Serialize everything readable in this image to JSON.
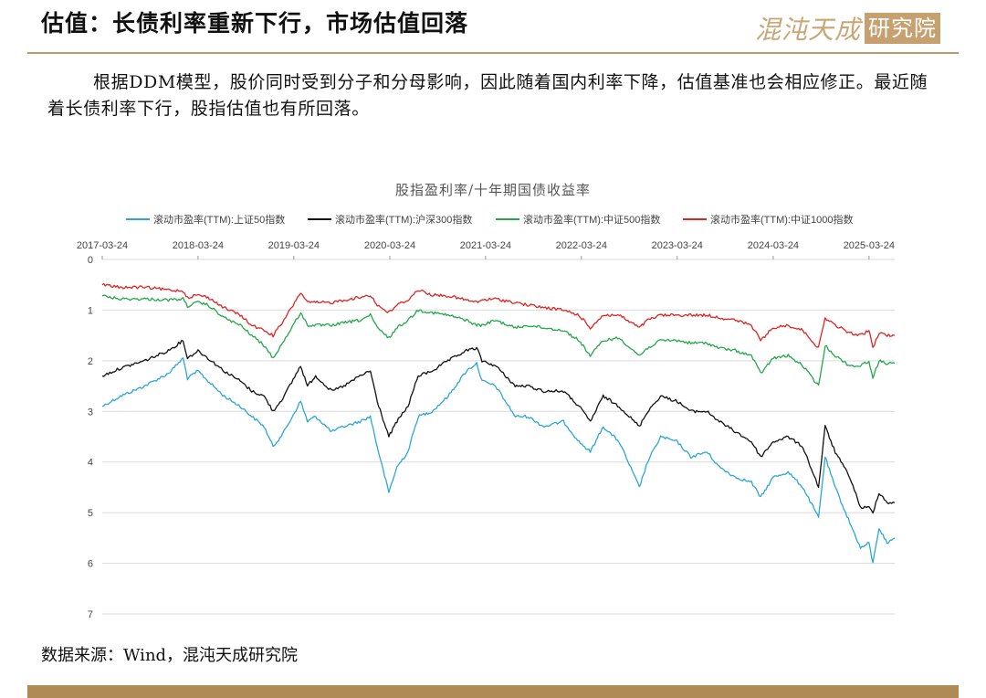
{
  "header": {
    "title": "估值：长债利率重新下行，市场估值回落",
    "logo_text": "混沌天成",
    "logo_box_text": "研究院"
  },
  "intro_text": "根据DDM模型，股价同时受到分子和分母影响，因此随着国内利率下降，估值基准也会相应修正。最近随着长债利率下行，股指估值也有所回落。",
  "source_text": "数据来源：Wind，混沌天成研究院",
  "colors": {
    "accent": "#b89a6c",
    "footer": "#b08a55",
    "sz50": "#2aa7d8",
    "hs300": "#111111",
    "zz500": "#22a84a",
    "zz1000": "#e02222"
  },
  "chart_data": {
    "type": "line",
    "title": "股指盈利率/十年期国债收益率",
    "x_ticks": [
      "2017-03-24",
      "2018-03-24",
      "2019-03-24",
      "2020-03-24",
      "2021-03-24",
      "2022-03-24",
      "2023-03-24",
      "2024-03-24",
      "2025-03-24"
    ],
    "xlim": [
      "2017-03-24",
      "2025-06-30"
    ],
    "y_ticks": [
      "0",
      "1",
      "2",
      "3",
      "4",
      "5",
      "6",
      "7"
    ],
    "ylim": [
      0,
      7
    ],
    "y_inverted": true,
    "x_axis_position": "top",
    "legend_position": "top",
    "grid": "horizontal",
    "series": [
      {
        "name": "滚动市盈率(TTM):上证50指数",
        "color": "#2aa7d8",
        "points": [
          [
            "2017-03-24",
            2.9
          ],
          [
            "2017-06-01",
            2.7
          ],
          [
            "2017-09-01",
            2.5
          ],
          [
            "2017-12-01",
            2.25
          ],
          [
            "2018-01-26",
            1.95
          ],
          [
            "2018-02-12",
            2.35
          ],
          [
            "2018-03-24",
            2.2
          ],
          [
            "2018-05-01",
            2.4
          ],
          [
            "2018-07-01",
            2.7
          ],
          [
            "2018-09-01",
            2.9
          ],
          [
            "2018-10-15",
            3.1
          ],
          [
            "2018-12-01",
            3.3
          ],
          [
            "2019-01-04",
            3.7
          ],
          [
            "2019-02-15",
            3.4
          ],
          [
            "2019-04-19",
            2.8
          ],
          [
            "2019-05-15",
            3.2
          ],
          [
            "2019-06-15",
            3.1
          ],
          [
            "2019-08-15",
            3.4
          ],
          [
            "2019-10-01",
            3.3
          ],
          [
            "2019-12-01",
            3.2
          ],
          [
            "2020-01-10",
            3.1
          ],
          [
            "2020-02-05",
            3.7
          ],
          [
            "2020-03-20",
            4.6
          ],
          [
            "2020-04-20",
            4.1
          ],
          [
            "2020-06-01",
            3.8
          ],
          [
            "2020-07-10",
            3.1
          ],
          [
            "2020-09-01",
            3.0
          ],
          [
            "2020-11-01",
            2.7
          ],
          [
            "2021-01-10",
            2.2
          ],
          [
            "2021-02-18",
            2.05
          ],
          [
            "2021-03-10",
            2.4
          ],
          [
            "2021-05-01",
            2.5
          ],
          [
            "2021-07-15",
            3.1
          ],
          [
            "2021-09-01",
            3.1
          ],
          [
            "2021-11-01",
            3.3
          ],
          [
            "2022-01-15",
            3.2
          ],
          [
            "2022-03-15",
            3.6
          ],
          [
            "2022-04-27",
            3.8
          ],
          [
            "2022-06-15",
            3.3
          ],
          [
            "2022-08-15",
            3.6
          ],
          [
            "2022-10-31",
            4.5
          ],
          [
            "2022-12-01",
            4.0
          ],
          [
            "2023-01-20",
            3.5
          ],
          [
            "2023-03-24",
            3.6
          ],
          [
            "2023-05-15",
            3.9
          ],
          [
            "2023-07-15",
            3.8
          ],
          [
            "2023-09-01",
            4.1
          ],
          [
            "2023-11-01",
            4.3
          ],
          [
            "2024-01-01",
            4.4
          ],
          [
            "2024-02-05",
            4.7
          ],
          [
            "2024-03-24",
            4.3
          ],
          [
            "2024-05-20",
            4.2
          ],
          [
            "2024-07-15",
            4.5
          ],
          [
            "2024-09-13",
            5.1
          ],
          [
            "2024-10-08",
            3.9
          ],
          [
            "2024-11-15",
            4.5
          ],
          [
            "2025-01-10",
            5.2
          ],
          [
            "2025-02-20",
            5.7
          ],
          [
            "2025-03-24",
            5.6
          ],
          [
            "2025-04-08",
            6.0
          ],
          [
            "2025-05-01",
            5.3
          ],
          [
            "2025-06-01",
            5.6
          ],
          [
            "2025-06-30",
            5.5
          ]
        ]
      },
      {
        "name": "滚动市盈率(TTM):沪深300指数",
        "color": "#111111",
        "points": [
          [
            "2017-03-24",
            2.3
          ],
          [
            "2017-06-01",
            2.15
          ],
          [
            "2017-09-01",
            2.0
          ],
          [
            "2017-12-01",
            1.8
          ],
          [
            "2018-01-26",
            1.6
          ],
          [
            "2018-02-12",
            1.95
          ],
          [
            "2018-03-24",
            1.8
          ],
          [
            "2018-05-01",
            1.95
          ],
          [
            "2018-07-01",
            2.2
          ],
          [
            "2018-09-01",
            2.4
          ],
          [
            "2018-10-15",
            2.6
          ],
          [
            "2018-12-01",
            2.7
          ],
          [
            "2019-01-04",
            3.0
          ],
          [
            "2019-02-15",
            2.7
          ],
          [
            "2019-04-19",
            2.1
          ],
          [
            "2019-05-15",
            2.5
          ],
          [
            "2019-06-15",
            2.3
          ],
          [
            "2019-08-15",
            2.6
          ],
          [
            "2019-10-01",
            2.5
          ],
          [
            "2019-12-01",
            2.3
          ],
          [
            "2020-01-10",
            2.2
          ],
          [
            "2020-02-05",
            2.8
          ],
          [
            "2020-03-20",
            3.5
          ],
          [
            "2020-04-20",
            3.2
          ],
          [
            "2020-06-01",
            2.9
          ],
          [
            "2020-07-10",
            2.3
          ],
          [
            "2020-09-01",
            2.2
          ],
          [
            "2020-11-01",
            2.0
          ],
          [
            "2021-01-10",
            1.8
          ],
          [
            "2021-02-18",
            1.75
          ],
          [
            "2021-03-10",
            2.0
          ],
          [
            "2021-05-01",
            2.1
          ],
          [
            "2021-07-15",
            2.5
          ],
          [
            "2021-09-01",
            2.5
          ],
          [
            "2021-11-01",
            2.6
          ],
          [
            "2022-01-15",
            2.6
          ],
          [
            "2022-03-15",
            2.9
          ],
          [
            "2022-04-27",
            3.2
          ],
          [
            "2022-06-15",
            2.7
          ],
          [
            "2022-08-15",
            2.9
          ],
          [
            "2022-10-31",
            3.3
          ],
          [
            "2022-12-01",
            3.0
          ],
          [
            "2023-01-20",
            2.7
          ],
          [
            "2023-03-24",
            2.8
          ],
          [
            "2023-05-15",
            3.0
          ],
          [
            "2023-07-15",
            3.0
          ],
          [
            "2023-09-01",
            3.2
          ],
          [
            "2023-11-01",
            3.4
          ],
          [
            "2024-01-01",
            3.6
          ],
          [
            "2024-02-05",
            3.9
          ],
          [
            "2024-03-24",
            3.6
          ],
          [
            "2024-05-20",
            3.5
          ],
          [
            "2024-07-15",
            3.7
          ],
          [
            "2024-09-13",
            4.5
          ],
          [
            "2024-10-08",
            3.3
          ],
          [
            "2024-11-15",
            3.8
          ],
          [
            "2025-01-10",
            4.3
          ],
          [
            "2025-02-20",
            4.9
          ],
          [
            "2025-03-24",
            4.9
          ],
          [
            "2025-04-08",
            5.0
          ],
          [
            "2025-05-01",
            4.6
          ],
          [
            "2025-06-01",
            4.8
          ],
          [
            "2025-06-30",
            4.8
          ]
        ]
      },
      {
        "name": "滚动市盈率(TTM):中证500指数",
        "color": "#22a84a",
        "points": [
          [
            "2017-03-24",
            0.72
          ],
          [
            "2017-06-01",
            0.78
          ],
          [
            "2017-09-01",
            0.78
          ],
          [
            "2017-12-01",
            0.8
          ],
          [
            "2018-01-26",
            0.78
          ],
          [
            "2018-02-12",
            0.92
          ],
          [
            "2018-03-24",
            0.85
          ],
          [
            "2018-05-01",
            0.9
          ],
          [
            "2018-07-01",
            1.15
          ],
          [
            "2018-09-01",
            1.3
          ],
          [
            "2018-10-15",
            1.5
          ],
          [
            "2018-12-01",
            1.7
          ],
          [
            "2019-01-04",
            1.95
          ],
          [
            "2019-02-15",
            1.6
          ],
          [
            "2019-04-19",
            1.05
          ],
          [
            "2019-05-15",
            1.3
          ],
          [
            "2019-06-15",
            1.3
          ],
          [
            "2019-08-15",
            1.3
          ],
          [
            "2019-10-01",
            1.25
          ],
          [
            "2019-12-01",
            1.2
          ],
          [
            "2020-01-10",
            1.1
          ],
          [
            "2020-02-05",
            1.35
          ],
          [
            "2020-03-20",
            1.55
          ],
          [
            "2020-04-20",
            1.35
          ],
          [
            "2020-06-01",
            1.2
          ],
          [
            "2020-07-10",
            1.0
          ],
          [
            "2020-09-01",
            1.05
          ],
          [
            "2020-11-01",
            1.1
          ],
          [
            "2021-01-10",
            1.2
          ],
          [
            "2021-02-18",
            1.3
          ],
          [
            "2021-03-10",
            1.3
          ],
          [
            "2021-05-01",
            1.2
          ],
          [
            "2021-07-15",
            1.35
          ],
          [
            "2021-09-01",
            1.3
          ],
          [
            "2021-11-01",
            1.35
          ],
          [
            "2022-01-15",
            1.4
          ],
          [
            "2022-03-15",
            1.6
          ],
          [
            "2022-04-27",
            1.9
          ],
          [
            "2022-06-15",
            1.6
          ],
          [
            "2022-08-15",
            1.55
          ],
          [
            "2022-10-31",
            1.9
          ],
          [
            "2022-12-01",
            1.75
          ],
          [
            "2023-01-20",
            1.6
          ],
          [
            "2023-03-24",
            1.6
          ],
          [
            "2023-05-15",
            1.65
          ],
          [
            "2023-07-15",
            1.65
          ],
          [
            "2023-09-01",
            1.75
          ],
          [
            "2023-11-01",
            1.8
          ],
          [
            "2024-01-01",
            1.9
          ],
          [
            "2024-02-05",
            2.25
          ],
          [
            "2024-03-24",
            1.95
          ],
          [
            "2024-05-20",
            1.9
          ],
          [
            "2024-07-15",
            2.1
          ],
          [
            "2024-09-13",
            2.5
          ],
          [
            "2024-10-08",
            1.7
          ],
          [
            "2024-11-15",
            1.9
          ],
          [
            "2025-01-10",
            2.1
          ],
          [
            "2025-02-20",
            2.1
          ],
          [
            "2025-03-24",
            2.0
          ],
          [
            "2025-04-08",
            2.35
          ],
          [
            "2025-05-01",
            2.0
          ],
          [
            "2025-06-01",
            2.05
          ],
          [
            "2025-06-30",
            2.05
          ]
        ]
      },
      {
        "name": "滚动市盈率(TTM):中证1000指数",
        "color": "#e02222",
        "points": [
          [
            "2017-03-24",
            0.5
          ],
          [
            "2017-06-01",
            0.55
          ],
          [
            "2017-09-01",
            0.55
          ],
          [
            "2017-12-01",
            0.6
          ],
          [
            "2018-01-26",
            0.62
          ],
          [
            "2018-02-12",
            0.75
          ],
          [
            "2018-03-24",
            0.7
          ],
          [
            "2018-05-01",
            0.75
          ],
          [
            "2018-07-01",
            0.95
          ],
          [
            "2018-09-01",
            1.1
          ],
          [
            "2018-10-15",
            1.3
          ],
          [
            "2018-12-01",
            1.4
          ],
          [
            "2019-01-04",
            1.5
          ],
          [
            "2019-02-15",
            1.2
          ],
          [
            "2019-04-19",
            0.65
          ],
          [
            "2019-05-15",
            0.85
          ],
          [
            "2019-06-15",
            0.85
          ],
          [
            "2019-08-15",
            0.85
          ],
          [
            "2019-10-01",
            0.8
          ],
          [
            "2019-12-01",
            0.75
          ],
          [
            "2020-01-10",
            0.7
          ],
          [
            "2020-02-05",
            0.9
          ],
          [
            "2020-03-20",
            1.05
          ],
          [
            "2020-04-20",
            0.9
          ],
          [
            "2020-06-01",
            0.8
          ],
          [
            "2020-07-10",
            0.6
          ],
          [
            "2020-09-01",
            0.7
          ],
          [
            "2020-11-01",
            0.72
          ],
          [
            "2021-01-10",
            0.8
          ],
          [
            "2021-02-18",
            0.85
          ],
          [
            "2021-03-10",
            0.8
          ],
          [
            "2021-05-01",
            0.78
          ],
          [
            "2021-07-15",
            0.85
          ],
          [
            "2021-09-01",
            0.9
          ],
          [
            "2021-11-01",
            0.95
          ],
          [
            "2022-01-15",
            1.0
          ],
          [
            "2022-03-15",
            1.1
          ],
          [
            "2022-04-27",
            1.35
          ],
          [
            "2022-06-15",
            1.1
          ],
          [
            "2022-08-15",
            1.1
          ],
          [
            "2022-10-31",
            1.35
          ],
          [
            "2022-12-01",
            1.2
          ],
          [
            "2023-01-20",
            1.1
          ],
          [
            "2023-03-24",
            1.1
          ],
          [
            "2023-05-15",
            1.1
          ],
          [
            "2023-07-15",
            1.1
          ],
          [
            "2023-09-01",
            1.15
          ],
          [
            "2023-11-01",
            1.2
          ],
          [
            "2024-01-01",
            1.3
          ],
          [
            "2024-02-05",
            1.6
          ],
          [
            "2024-03-24",
            1.35
          ],
          [
            "2024-05-20",
            1.3
          ],
          [
            "2024-07-15",
            1.4
          ],
          [
            "2024-09-13",
            1.75
          ],
          [
            "2024-10-08",
            1.15
          ],
          [
            "2024-11-15",
            1.3
          ],
          [
            "2025-01-10",
            1.45
          ],
          [
            "2025-02-20",
            1.5
          ],
          [
            "2025-03-24",
            1.4
          ],
          [
            "2025-04-08",
            1.75
          ],
          [
            "2025-05-01",
            1.45
          ],
          [
            "2025-06-01",
            1.5
          ],
          [
            "2025-06-30",
            1.5
          ]
        ]
      }
    ]
  }
}
